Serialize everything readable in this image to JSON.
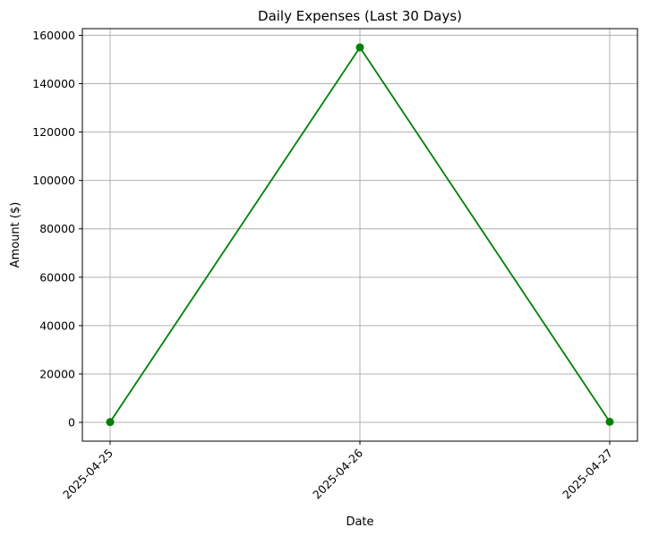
{
  "chart_data": {
    "type": "line",
    "title": "Daily Expenses (Last 30 Days)",
    "xlabel": "Date",
    "ylabel": "Amount ($)",
    "categories": [
      "2025-04-25",
      "2025-04-26",
      "2025-04-27"
    ],
    "series": [
      {
        "values": [
          150,
          155000,
          250
        ],
        "color": "#008000",
        "marker": "circle"
      }
    ],
    "ylim": [
      -7750,
      162750
    ],
    "y_ticks": [
      0,
      20000,
      40000,
      60000,
      80000,
      100000,
      120000,
      140000,
      160000
    ],
    "grid": true,
    "x_tick_rotation": 45
  }
}
